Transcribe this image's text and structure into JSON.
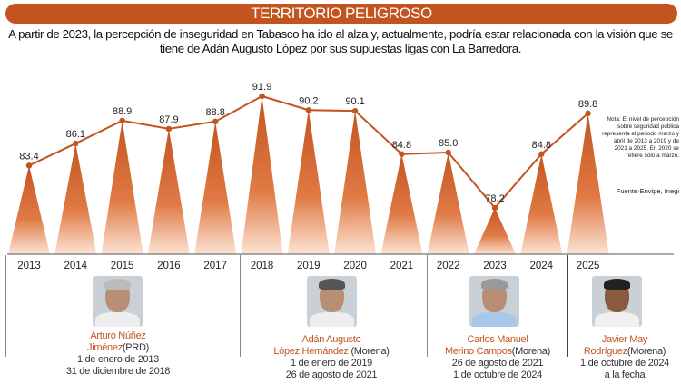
{
  "title": "TERRITORIO PELIGROSO",
  "subtitle_line1": "A partir de 2023, la percepción de inseguridad en Tabasco ha ido al alza y, actualmente, podría estar relacionada con la visión que se",
  "subtitle_line2": "tiene de Adán Augusto López por sus supuestas ligas con La Barredora.",
  "note": "Nota: El nivel de percepción sobre seguridad pública representa el periodo marzo y abril de 2013 a 2019 y de 2021 a 2025. En 2020 se refiere sólo a marzo.",
  "source_label": "Fuente",
  "source_value": "Envipe, Inegi",
  "colors": {
    "accent": "#c4541f",
    "line": "#c4541f"
  },
  "chart_data": {
    "type": "line",
    "categories": [
      "2013",
      "2014",
      "2015",
      "2016",
      "2017",
      "2018",
      "2019",
      "2020",
      "2021",
      "2022",
      "2023",
      "2024",
      "2025"
    ],
    "values": [
      83.4,
      86.1,
      88.9,
      87.9,
      88.8,
      91.9,
      90.2,
      90.1,
      84.8,
      85.0,
      78.2,
      84.8,
      89.8
    ],
    "labels": [
      "83.4",
      "86.1",
      "88.9",
      "87.9",
      "88.8",
      "91.9",
      "90.2",
      "90.1",
      "84.8",
      "85.0",
      "78.2",
      "84.8",
      "89.8"
    ],
    "grid": false,
    "markers": "triangle-spikes"
  },
  "governors": [
    {
      "name1": "Arturo Núñez",
      "name2": "Jiménez",
      "party": "(PRD)",
      "start": "1 de enero de 2013",
      "end": "31 de diciembre de 2018"
    },
    {
      "name1": "Adán Augusto",
      "name2": "López  Hernández",
      "party": "(Morena)",
      "start": "1 de enero de 2019",
      "end": "26 de agosto de 2021"
    },
    {
      "name1": "Carlos Manuel",
      "name2": "Merino Campos",
      "party": "(Morena)",
      "start": "26 de agosto de 2021",
      "end": "1 de octubre de 2024"
    },
    {
      "name1": "Javier May",
      "name2": "Rodríguez",
      "party": "(Morena)",
      "start": "1 de octubre de 2024",
      "end": "a la fecha"
    }
  ]
}
